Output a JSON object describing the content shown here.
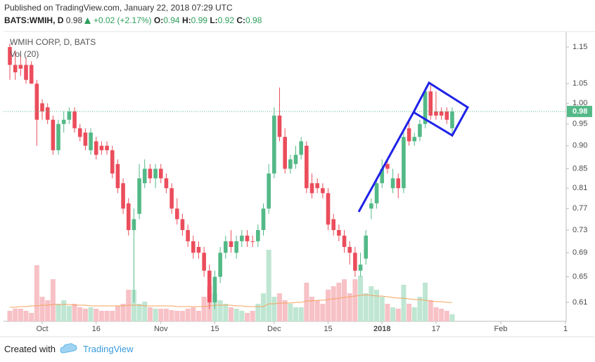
{
  "published": "Published on TradingView.com, January 22, 2018 07:29 UTC",
  "symbol": "BATS:WMIH, D",
  "change": "+0.02 (+2.17%)",
  "ohlc_labels": [
    "O:",
    "H:",
    "L:",
    "C:"
  ],
  "footer": {
    "created": "Created with",
    "brand": "TradingView"
  },
  "chart_data": {
    "type": "candlestick",
    "legend": "WMIH CORP, D, BATS",
    "volume_legend": "Vol (20)",
    "log_scale": true,
    "grid": false,
    "up_color": "#53b987",
    "down_color": "#eb4d5c",
    "volume_up_color": "#bfe6d2",
    "volume_down_color": "#f7c1c6",
    "ma_color": "#f5a35c",
    "ylim": [
      0.582,
      1.195
    ],
    "yticks": [
      1.15,
      1.05,
      {
        "value": 1.0,
        "label": "1.00"
      },
      0.95,
      {
        "value": 0.9,
        "label": "0.90"
      },
      0.85,
      0.81,
      0.77,
      0.73,
      0.69,
      0.65,
      0.61
    ],
    "vol_ylim": [
      0,
      110
    ],
    "categories": [
      null,
      null,
      null,
      null,
      null,
      null,
      "Oct",
      null,
      null,
      null,
      null,
      null,
      null,
      null,
      null,
      null,
      "16",
      null,
      null,
      null,
      null,
      null,
      null,
      null,
      null,
      null,
      null,
      null,
      "Nov",
      null,
      null,
      null,
      null,
      null,
      null,
      null,
      null,
      null,
      "15",
      null,
      null,
      null,
      null,
      null,
      null,
      null,
      null,
      null,
      null,
      "Dec",
      null,
      null,
      null,
      null,
      null,
      null,
      null,
      null,
      null,
      "15",
      null,
      null,
      null,
      null,
      null,
      null,
      null,
      null,
      null,
      "2018",
      null,
      null,
      null,
      null,
      null,
      null,
      null,
      null,
      null,
      "17",
      null,
      null,
      null,
      null,
      null,
      null,
      null,
      null,
      null,
      null,
      null,
      "Feb",
      null,
      null,
      null,
      null,
      null,
      null,
      null,
      null,
      null,
      null,
      null,
      "1"
    ],
    "open": [
      1.15,
      1.1,
      1.1,
      1.1,
      1.1,
      1.05,
      1.0,
      0.99,
      0.96,
      0.89,
      0.95,
      0.96,
      0.98,
      0.94,
      0.93,
      0.89,
      0.91,
      0.9,
      0.9,
      0.89,
      0.86,
      0.82,
      0.78,
      0.73,
      0.76,
      0.82,
      0.85,
      0.83,
      0.85,
      0.83,
      0.81,
      0.77,
      0.75,
      0.73,
      0.71,
      0.7,
      0.69,
      0.66,
      0.61,
      0.65,
      0.69,
      0.71,
      0.69,
      0.71,
      0.72,
      0.71,
      0.71,
      0.73,
      0.77,
      0.84,
      0.97,
      0.92,
      0.85,
      0.86,
      0.88,
      0.9,
      0.82,
      0.82,
      0.81,
      0.8,
      0.75,
      0.73,
      0.72,
      0.7,
      0.69,
      0.66,
      0.68,
      0.77,
      0.78,
      0.82,
      0.86,
      0.81,
      0.83,
      0.81,
      0.94,
      0.91,
      0.92,
      0.95,
      1.03,
      0.98,
      0.98,
      0.98,
      0.94,
      null,
      null,
      null,
      null,
      null,
      null,
      null,
      null,
      null,
      null,
      null,
      null,
      null,
      null,
      null,
      null,
      null,
      null,
      null,
      null,
      null
    ],
    "high": [
      1.16,
      1.14,
      1.13,
      1.12,
      1.11,
      1.06,
      1.01,
      1.0,
      0.97,
      0.96,
      0.98,
      0.99,
      0.99,
      0.95,
      0.94,
      0.94,
      0.92,
      0.91,
      0.91,
      0.9,
      0.87,
      0.83,
      0.79,
      0.77,
      0.86,
      0.87,
      0.86,
      0.86,
      0.86,
      0.84,
      0.82,
      0.79,
      0.76,
      0.74,
      0.72,
      0.71,
      0.7,
      0.67,
      0.66,
      0.7,
      0.72,
      0.73,
      0.72,
      0.73,
      0.73,
      0.72,
      0.74,
      0.78,
      0.86,
      0.99,
      1.04,
      0.94,
      0.88,
      0.9,
      0.92,
      0.91,
      0.84,
      0.83,
      0.82,
      0.81,
      0.76,
      0.74,
      0.73,
      0.71,
      0.7,
      0.69,
      0.73,
      0.79,
      0.83,
      0.87,
      0.87,
      0.85,
      0.84,
      0.93,
      0.96,
      0.93,
      0.96,
      1.04,
      1.05,
      1.03,
      0.99,
      0.99,
      0.99,
      null,
      null,
      null,
      null,
      null,
      null,
      null,
      null,
      null,
      null,
      null,
      null,
      null,
      null,
      null,
      null,
      null,
      null,
      null,
      null,
      null
    ],
    "low": [
      1.06,
      1.06,
      1.07,
      1.05,
      1.05,
      0.9,
      0.96,
      0.95,
      0.88,
      0.88,
      0.93,
      0.95,
      0.93,
      0.91,
      0.89,
      0.88,
      0.87,
      0.88,
      0.88,
      0.83,
      0.8,
      0.76,
      0.72,
      0.61,
      0.75,
      0.81,
      0.82,
      0.81,
      0.82,
      0.8,
      0.76,
      0.74,
      0.72,
      0.7,
      0.68,
      0.68,
      0.65,
      0.6,
      0.6,
      0.64,
      0.68,
      0.69,
      0.68,
      0.7,
      0.7,
      0.7,
      0.7,
      0.72,
      0.76,
      0.83,
      0.91,
      0.84,
      0.84,
      0.85,
      0.87,
      0.8,
      0.79,
      0.8,
      0.79,
      0.73,
      0.72,
      0.71,
      0.69,
      0.67,
      0.65,
      0.65,
      0.67,
      0.75,
      0.77,
      0.81,
      0.84,
      0.8,
      0.79,
      0.8,
      0.9,
      0.9,
      0.91,
      0.94,
      0.96,
      0.96,
      0.96,
      0.95,
      0.92,
      null,
      null,
      null,
      null,
      null,
      null,
      null,
      null,
      null,
      null,
      null,
      null,
      null,
      null,
      null,
      null,
      null,
      null,
      null,
      null,
      null
    ],
    "close": [
      1.1,
      1.08,
      1.09,
      1.06,
      1.05,
      0.96,
      0.98,
      0.96,
      0.89,
      0.95,
      0.96,
      0.98,
      0.94,
      0.92,
      0.9,
      0.93,
      0.88,
      0.89,
      0.89,
      0.84,
      0.81,
      0.77,
      0.73,
      0.75,
      0.83,
      0.85,
      0.83,
      0.85,
      0.83,
      0.81,
      0.77,
      0.75,
      0.73,
      0.71,
      0.69,
      0.69,
      0.66,
      0.61,
      0.65,
      0.69,
      0.71,
      0.7,
      0.71,
      0.72,
      0.71,
      0.71,
      0.73,
      0.77,
      0.84,
      0.97,
      0.92,
      0.85,
      0.87,
      0.88,
      0.91,
      0.81,
      0.8,
      0.81,
      0.8,
      0.74,
      0.73,
      0.72,
      0.7,
      0.69,
      0.66,
      0.67,
      0.72,
      0.78,
      0.82,
      0.85,
      0.85,
      0.83,
      0.81,
      0.92,
      0.91,
      0.92,
      0.95,
      1.03,
      0.97,
      0.97,
      0.97,
      0.96,
      0.98,
      null,
      null,
      null,
      null,
      null,
      null,
      null,
      null,
      null,
      null,
      null,
      null,
      null,
      null,
      null,
      null,
      null,
      null,
      null,
      null,
      null
    ],
    "volume": [
      15,
      18,
      18,
      15,
      12,
      80,
      35,
      30,
      60,
      25,
      30,
      22,
      25,
      20,
      18,
      20,
      18,
      15,
      15,
      15,
      22,
      25,
      45,
      45,
      25,
      28,
      20,
      18,
      18,
      18,
      16,
      15,
      15,
      18,
      20,
      15,
      35,
      50,
      40,
      30,
      25,
      20,
      18,
      15,
      12,
      15,
      25,
      40,
      102,
      35,
      40,
      30,
      25,
      20,
      20,
      55,
      35,
      30,
      25,
      45,
      50,
      55,
      60,
      40,
      60,
      65,
      40,
      50,
      45,
      35,
      25,
      20,
      18,
      52,
      25,
      20,
      35,
      55,
      30,
      20,
      18,
      15,
      10,
      null,
      null,
      null,
      null,
      null,
      null,
      null,
      null,
      null,
      null,
      null,
      null,
      null,
      null,
      null,
      null,
      null,
      null,
      null,
      null,
      null
    ],
    "volume_ma": [
      20,
      20,
      21,
      21,
      22,
      22,
      23,
      23,
      24,
      24,
      24,
      24,
      23,
      23,
      23,
      22,
      22,
      22,
      22,
      22,
      22,
      22,
      23,
      23,
      23,
      22,
      22,
      22,
      22,
      22,
      22,
      21,
      21,
      21,
      21,
      21,
      21,
      22,
      23,
      23,
      23,
      23,
      22,
      22,
      21,
      21,
      21,
      21,
      25,
      25,
      26,
      26,
      26,
      27,
      27,
      29,
      29,
      30,
      30,
      31,
      32,
      33,
      34,
      35,
      36,
      37,
      38,
      37,
      36,
      36,
      35,
      34,
      33,
      33,
      32,
      31,
      31,
      30,
      29,
      28,
      28,
      27,
      27,
      null,
      null,
      null,
      null,
      null,
      null,
      null,
      null,
      null,
      null,
      null,
      null,
      null,
      null,
      null,
      null,
      null,
      null,
      null,
      null,
      null
    ]
  }
}
